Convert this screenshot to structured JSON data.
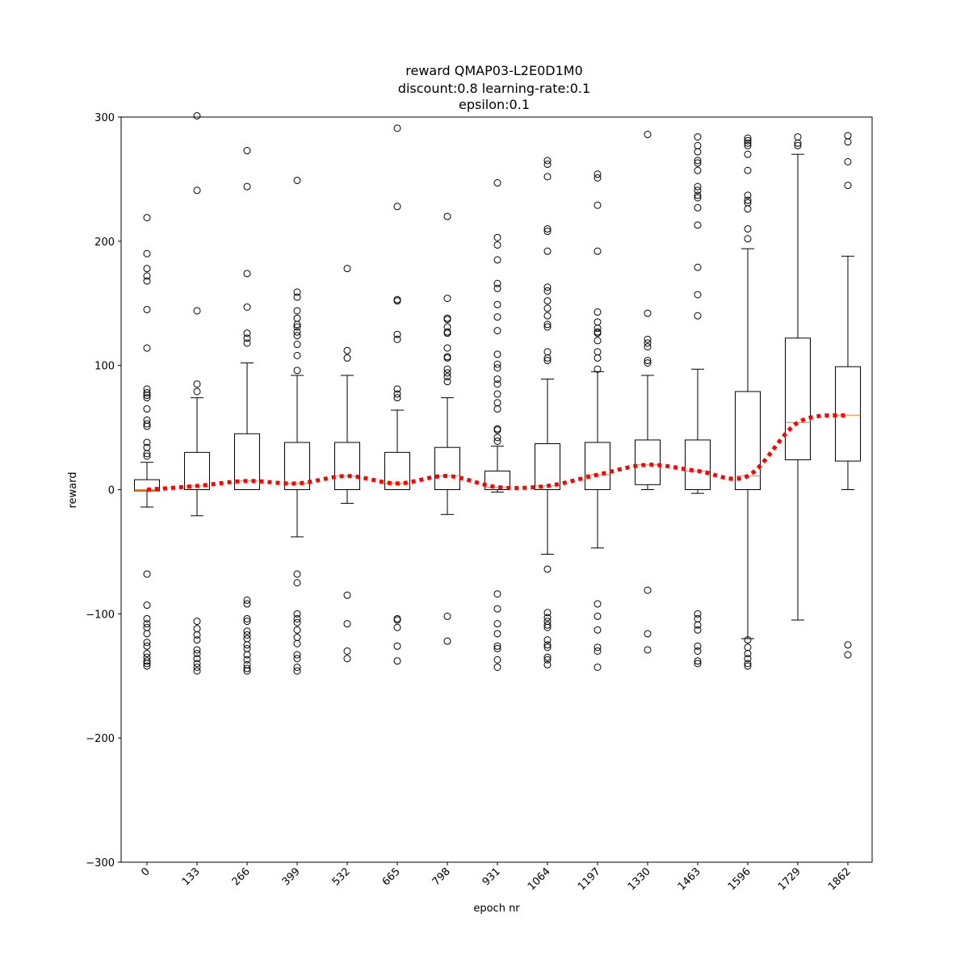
{
  "chart_data": {
    "type": "box",
    "title_lines": [
      "reward QMAP03-L2E0D1M0",
      "discount:0.8 learning-rate:0.1",
      "epsilon:0.1"
    ],
    "xlabel": "epoch nr",
    "ylabel": "reward",
    "ylim": [
      -300,
      300
    ],
    "yticks": [
      -300,
      -200,
      -100,
      0,
      100,
      200,
      300
    ],
    "yticklabels": [
      "−300",
      "−200",
      "−100",
      "0",
      "100",
      "200",
      "300"
    ],
    "categories": [
      "0",
      "133",
      "266",
      "399",
      "532",
      "665",
      "798",
      "931",
      "1064",
      "1197",
      "1330",
      "1463",
      "1596",
      "1729",
      "1862"
    ],
    "boxes": [
      {
        "whislo": -14,
        "q1": -1,
        "med": 0,
        "q3": 8,
        "whishi": 22,
        "fliers": [
          219,
          190,
          178,
          172,
          168,
          145,
          114,
          81,
          78,
          76,
          74,
          65,
          56,
          53,
          51,
          38,
          34,
          29,
          27,
          -68,
          -93,
          -104,
          -108,
          -111,
          -116,
          -123,
          -126,
          -132,
          -135,
          -138,
          -140,
          -142
        ]
      },
      {
        "whislo": -21,
        "q1": 0,
        "med": 3,
        "q3": 30,
        "whishi": 74,
        "fliers": [
          301,
          241,
          144,
          85,
          79,
          -106,
          -112,
          -117,
          -121,
          -129,
          -132,
          -136,
          -140,
          -143,
          -146
        ]
      },
      {
        "whislo": 0,
        "q1": 0,
        "med": 7,
        "q3": 45,
        "whishi": 102,
        "fliers": [
          273,
          244,
          174,
          147,
          126,
          122,
          118,
          -89,
          -92,
          -104,
          -106,
          -114,
          -117,
          -120,
          -125,
          -128,
          -133,
          -137,
          -141,
          -144,
          -146
        ]
      },
      {
        "whislo": -38,
        "q1": 0,
        "med": 5,
        "q3": 38,
        "whishi": 92,
        "fliers": [
          249,
          159,
          155,
          144,
          138,
          133,
          131,
          127,
          124,
          117,
          108,
          96,
          -68,
          -75,
          -100,
          -104,
          -107,
          -113,
          -119,
          -124,
          -133,
          -136,
          -143,
          -146
        ]
      },
      {
        "whislo": -11,
        "q1": 0,
        "med": 11,
        "q3": 38,
        "whishi": 92,
        "fliers": [
          178,
          112,
          106,
          -85,
          -108,
          -130,
          -136
        ]
      },
      {
        "whislo": 0,
        "q1": 0,
        "med": 5,
        "q3": 30,
        "whishi": 64,
        "fliers": [
          291,
          228,
          153,
          152,
          125,
          121,
          81,
          77,
          74,
          -104,
          -105,
          -111,
          -126,
          -138
        ]
      },
      {
        "whislo": -20,
        "q1": 0,
        "med": 11,
        "q3": 34,
        "whishi": 74,
        "fliers": [
          220,
          154,
          138,
          137,
          131,
          127,
          126,
          114,
          107,
          106,
          97,
          94,
          91,
          87,
          -102,
          -122
        ]
      },
      {
        "whislo": -2,
        "q1": 0,
        "med": 2,
        "q3": 15,
        "whishi": 35,
        "fliers": [
          247,
          203,
          197,
          185,
          166,
          162,
          149,
          139,
          128,
          109,
          101,
          98,
          89,
          85,
          77,
          70,
          65,
          49,
          48,
          42,
          39,
          -84,
          -96,
          -108,
          -116,
          -126,
          -128,
          -137,
          -143
        ]
      },
      {
        "whislo": -52,
        "q1": 0,
        "med": 3,
        "q3": 37,
        "whishi": 89,
        "fliers": [
          265,
          262,
          252,
          210,
          208,
          192,
          163,
          160,
          152,
          146,
          140,
          133,
          131,
          111,
          106,
          104,
          -64,
          -99,
          -103,
          -106,
          -109,
          -111,
          -121,
          -125,
          -127,
          -135,
          -137,
          -141
        ]
      },
      {
        "whislo": -47,
        "q1": 0,
        "med": 12,
        "q3": 38,
        "whishi": 95,
        "fliers": [
          254,
          251,
          229,
          192,
          143,
          135,
          130,
          127,
          126,
          120,
          111,
          106,
          97,
          -92,
          -102,
          -113,
          -127,
          -130,
          -143
        ]
      },
      {
        "whislo": 0,
        "q1": 4,
        "med": 20,
        "q3": 40,
        "whishi": 92,
        "fliers": [
          286,
          142,
          121,
          118,
          115,
          104,
          102,
          -81,
          -116,
          -129
        ]
      },
      {
        "whislo": -3,
        "q1": 0,
        "med": 15,
        "q3": 40,
        "whishi": 97,
        "fliers": [
          284,
          277,
          272,
          265,
          263,
          257,
          244,
          241,
          237,
          235,
          227,
          213,
          179,
          157,
          140,
          -100,
          -104,
          -109,
          -113,
          -126,
          -130,
          -138,
          -140
        ]
      },
      {
        "whislo": -120,
        "q1": 0,
        "med": 11,
        "q3": 79,
        "whishi": 194,
        "fliers": [
          283,
          281,
          279,
          277,
          270,
          257,
          237,
          233,
          231,
          226,
          210,
          202,
          -121,
          -127,
          -132,
          -136,
          -140,
          -142
        ]
      },
      {
        "whislo": -105,
        "q1": 24,
        "med": 54,
        "q3": 122,
        "whishi": 270,
        "fliers": [
          284,
          279,
          277
        ]
      },
      {
        "whislo": 0,
        "q1": 23,
        "med": 60,
        "q3": 99,
        "whishi": 188,
        "fliers": [
          285,
          280,
          264,
          245,
          -125,
          -133
        ]
      }
    ],
    "trend_line": {
      "values": [
        0,
        3,
        7,
        5,
        11,
        5,
        11,
        2,
        3,
        12,
        20,
        15,
        11,
        54,
        60
      ],
      "color": "#ff0000",
      "style": "dotted"
    },
    "colors": {
      "box": "#000000",
      "median": "#ff7f0e",
      "trend": "#ff0000"
    }
  }
}
